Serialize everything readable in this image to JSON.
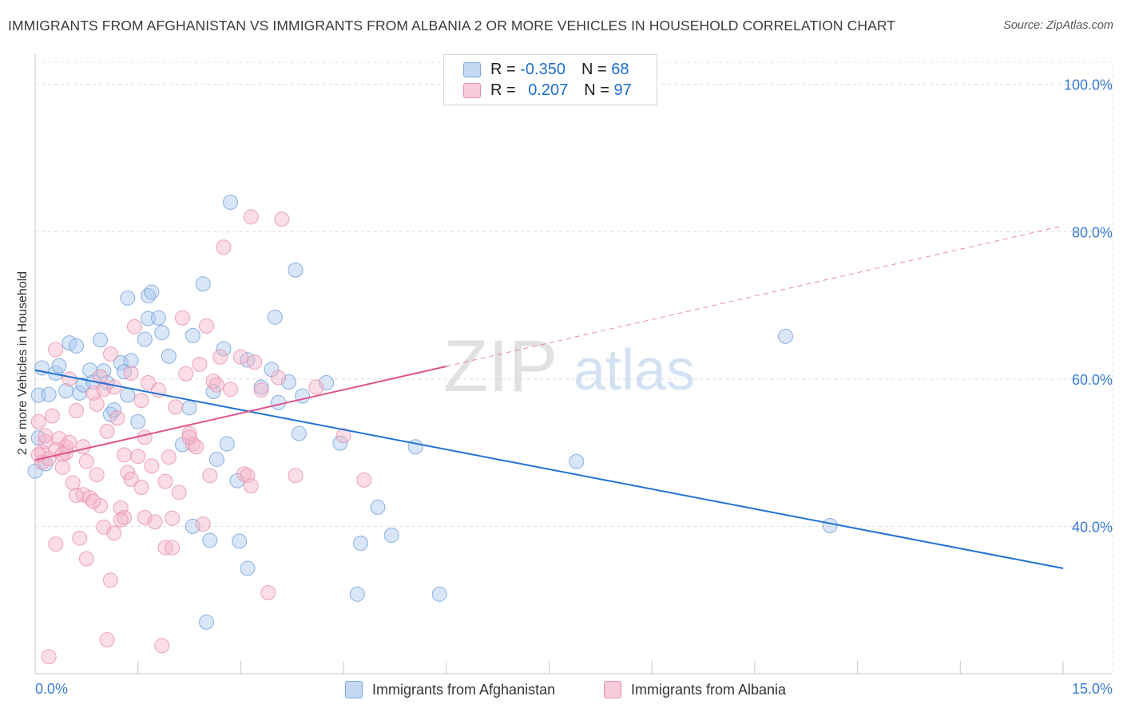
{
  "title": "IMMIGRANTS FROM AFGHANISTAN VS IMMIGRANTS FROM ALBANIA 2 OR MORE VEHICLES IN HOUSEHOLD CORRELATION CHART",
  "source": "Source: ZipAtlas.com",
  "watermark": {
    "zip": "ZIP",
    "atlas": "atlas"
  },
  "legend": {
    "r_label": "R =",
    "n_label": "N =",
    "rows": [
      {
        "series": "Immigrants from Afghanistan",
        "r": "-0.350",
        "n": "68",
        "color": "#a9c8f0"
      },
      {
        "series": "Immigrants from Albania",
        "r": "0.207",
        "n": "97",
        "color": "#f5b3c8"
      }
    ]
  },
  "chart_data": {
    "type": "scatter",
    "title": "IMMIGRANTS FROM AFGHANISTAN VS IMMIGRANTS FROM ALBANIA 2 OR MORE VEHICLES IN HOUSEHOLD CORRELATION CHART",
    "xlabel": "",
    "ylabel": "2 or more Vehicles in Household",
    "xlim": [
      0,
      15
    ],
    "ylim": [
      20,
      103
    ],
    "x_tick_labels": [
      {
        "value": 0,
        "label": "0.0%"
      },
      {
        "value": 15,
        "label": "15.0%"
      }
    ],
    "y_tick_labels": [
      {
        "value": 40,
        "label": "40.0%"
      },
      {
        "value": 60,
        "label": "60.0%"
      },
      {
        "value": 80,
        "label": "80.0%"
      },
      {
        "value": 100,
        "label": "100.0%"
      }
    ],
    "grid": true,
    "legend_position": "top-center",
    "series": [
      {
        "name": "Immigrants from Afghanistan",
        "color": "#a9c8f0",
        "edge_color": "#6f9fd8",
        "line_color": "#2271d3",
        "trend": {
          "x": [
            0,
            15
          ],
          "y": [
            61.2,
            34.3
          ],
          "dashed_from": null
        },
        "points": [
          [
            0.05,
            57.8
          ],
          [
            0.2,
            57.9
          ],
          [
            0.3,
            60.8
          ],
          [
            0.35,
            61.8
          ],
          [
            0.45,
            58.4
          ],
          [
            0.5,
            64.9
          ],
          [
            0.6,
            64.5
          ],
          [
            0.65,
            58.1
          ],
          [
            0.7,
            59.2
          ],
          [
            0.8,
            61.2
          ],
          [
            0.85,
            59.6
          ],
          [
            0.95,
            65.3
          ],
          [
            1.0,
            61.1
          ],
          [
            1.05,
            59.5
          ],
          [
            1.1,
            55.2
          ],
          [
            1.15,
            55.8
          ],
          [
            1.25,
            62.2
          ],
          [
            1.3,
            61.0
          ],
          [
            1.35,
            57.8
          ],
          [
            1.4,
            62.5
          ],
          [
            1.5,
            54.2
          ],
          [
            1.35,
            71.0
          ],
          [
            1.6,
            65.4
          ],
          [
            1.65,
            68.2
          ],
          [
            1.65,
            71.3
          ],
          [
            1.7,
            71.8
          ],
          [
            1.8,
            68.3
          ],
          [
            1.85,
            66.3
          ],
          [
            1.95,
            63.1
          ],
          [
            2.15,
            51.1
          ],
          [
            2.25,
            56.1
          ],
          [
            2.3,
            40.0
          ],
          [
            2.3,
            65.9
          ],
          [
            2.45,
            72.9
          ],
          [
            2.5,
            27.0
          ],
          [
            2.55,
            38.1
          ],
          [
            2.6,
            58.3
          ],
          [
            2.65,
            49.1
          ],
          [
            2.75,
            64.1
          ],
          [
            2.8,
            51.2
          ],
          [
            2.85,
            84.0
          ],
          [
            2.95,
            46.2
          ],
          [
            2.98,
            38.0
          ],
          [
            3.1,
            34.3
          ],
          [
            3.1,
            62.6
          ],
          [
            3.3,
            58.9
          ],
          [
            3.45,
            61.3
          ],
          [
            3.5,
            68.4
          ],
          [
            3.55,
            56.8
          ],
          [
            3.7,
            59.6
          ],
          [
            3.8,
            74.8
          ],
          [
            3.85,
            52.6
          ],
          [
            3.9,
            57.7
          ],
          [
            4.25,
            59.5
          ],
          [
            4.45,
            51.3
          ],
          [
            4.7,
            30.8
          ],
          [
            4.75,
            37.7
          ],
          [
            5.0,
            42.6
          ],
          [
            5.2,
            38.8
          ],
          [
            5.55,
            50.8
          ],
          [
            5.9,
            30.8
          ],
          [
            7.9,
            48.8
          ],
          [
            10.95,
            65.8
          ],
          [
            11.6,
            40.1
          ],
          [
            0.0,
            47.5
          ],
          [
            0.1,
            61.5
          ],
          [
            0.05,
            52.0
          ],
          [
            0.15,
            48.5
          ]
        ]
      },
      {
        "name": "Immigrants from Albania",
        "color": "#f5b3c8",
        "edge_color": "#e98fae",
        "line_color": "#e0558a",
        "trend": {
          "x": [
            0,
            15
          ],
          "y": [
            49.0,
            80.8
          ],
          "dashed_from": 6.0
        },
        "points": [
          [
            0.05,
            54.2
          ],
          [
            0.1,
            50.1
          ],
          [
            0.1,
            48.7
          ],
          [
            0.15,
            51.5
          ],
          [
            0.2,
            49.2
          ],
          [
            0.2,
            22.3
          ],
          [
            0.25,
            55.0
          ],
          [
            0.3,
            37.6
          ],
          [
            0.3,
            64.0
          ],
          [
            0.35,
            51.9
          ],
          [
            0.4,
            48.0
          ],
          [
            0.45,
            50.0
          ],
          [
            0.45,
            50.8
          ],
          [
            0.5,
            51.4
          ],
          [
            0.55,
            45.9
          ],
          [
            0.6,
            55.7
          ],
          [
            0.65,
            38.4
          ],
          [
            0.7,
            50.8
          ],
          [
            0.7,
            44.3
          ],
          [
            0.75,
            48.8
          ],
          [
            0.75,
            35.6
          ],
          [
            0.8,
            43.9
          ],
          [
            0.85,
            58.1
          ],
          [
            0.9,
            56.6
          ],
          [
            0.95,
            60.3
          ],
          [
            0.95,
            42.8
          ],
          [
            1.0,
            58.6
          ],
          [
            1.05,
            24.6
          ],
          [
            1.05,
            52.9
          ],
          [
            1.1,
            63.4
          ],
          [
            1.1,
            32.7
          ],
          [
            1.15,
            58.9
          ],
          [
            1.15,
            39.1
          ],
          [
            1.2,
            54.7
          ],
          [
            1.25,
            42.5
          ],
          [
            1.3,
            41.2
          ],
          [
            1.3,
            49.7
          ],
          [
            1.35,
            47.3
          ],
          [
            1.4,
            46.4
          ],
          [
            1.45,
            67.1
          ],
          [
            1.5,
            49.5
          ],
          [
            1.55,
            45.3
          ],
          [
            1.55,
            57.1
          ],
          [
            1.6,
            41.2
          ],
          [
            1.6,
            52.1
          ],
          [
            1.65,
            59.5
          ],
          [
            1.7,
            48.2
          ],
          [
            1.75,
            40.6
          ],
          [
            1.8,
            58.5
          ],
          [
            1.85,
            23.8
          ],
          [
            1.9,
            37.1
          ],
          [
            1.95,
            49.4
          ],
          [
            2.0,
            41.1
          ],
          [
            2.0,
            37.1
          ],
          [
            2.05,
            56.2
          ],
          [
            2.1,
            44.6
          ],
          [
            2.15,
            68.3
          ],
          [
            2.2,
            60.7
          ],
          [
            2.25,
            52.6
          ],
          [
            2.3,
            51.2
          ],
          [
            2.35,
            50.8
          ],
          [
            2.4,
            62.0
          ],
          [
            2.45,
            40.3
          ],
          [
            2.5,
            67.2
          ],
          [
            2.55,
            46.9
          ],
          [
            2.6,
            59.7
          ],
          [
            2.7,
            63.0
          ],
          [
            2.75,
            77.9
          ],
          [
            2.85,
            58.6
          ],
          [
            3.0,
            63.0
          ],
          [
            3.05,
            47.1
          ],
          [
            3.1,
            46.9
          ],
          [
            3.15,
            45.5
          ],
          [
            3.2,
            62.3
          ],
          [
            3.3,
            58.5
          ],
          [
            3.4,
            31.0
          ],
          [
            3.55,
            60.2
          ],
          [
            3.6,
            81.7
          ],
          [
            3.8,
            46.9
          ],
          [
            4.1,
            58.9
          ],
          [
            4.5,
            52.3
          ],
          [
            4.8,
            46.3
          ],
          [
            0.05,
            49.7
          ],
          [
            0.3,
            50.4
          ],
          [
            0.4,
            49.8
          ],
          [
            0.6,
            44.2
          ],
          [
            0.85,
            43.4
          ],
          [
            1.0,
            39.9
          ],
          [
            1.4,
            60.8
          ],
          [
            1.9,
            46.1
          ],
          [
            2.25,
            52.1
          ],
          [
            3.15,
            82.0
          ],
          [
            0.15,
            52.3
          ],
          [
            0.5,
            60.0
          ],
          [
            0.9,
            47.0
          ],
          [
            1.25,
            40.9
          ],
          [
            2.65,
            59.2
          ]
        ]
      }
    ]
  }
}
